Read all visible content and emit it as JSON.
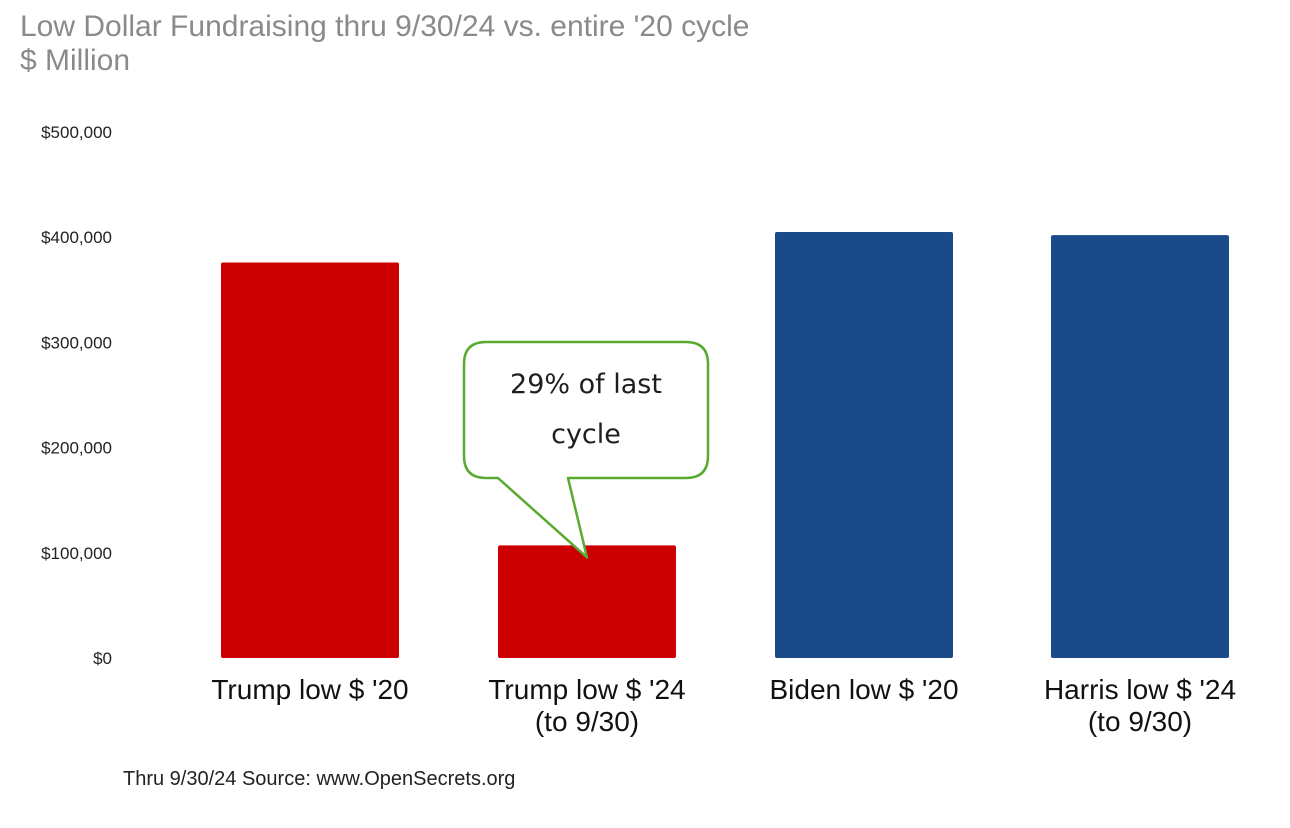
{
  "chart_data": {
    "type": "bar",
    "title": "Low Dollar Fundraising thru 9/30/24 vs. entire '20 cycle",
    "subtitle": "$ Million",
    "categories": [
      [
        "Trump low $ '20"
      ],
      [
        "Trump low $ '24",
        "(to 9/30)"
      ],
      [
        "Biden low $ '20"
      ],
      [
        "Harris low $ '24",
        "(to 9/30)"
      ]
    ],
    "values": [
      376000,
      107000,
      405000,
      402000
    ],
    "colors": [
      "#cc0000",
      "#cc0000",
      "#1a4a8a",
      "#1a4a8a"
    ],
    "ylim": [
      0,
      500000
    ],
    "yticks": [
      0,
      100000,
      200000,
      300000,
      400000,
      500000
    ],
    "ytick_labels": [
      "$0",
      "$100,000",
      "$200,000",
      "$300,000",
      "$400,000",
      "$500,000"
    ],
    "grid": false,
    "xlabel": "",
    "ylabel": "",
    "annotation": {
      "text": "29% of last cycle",
      "target_index": 1,
      "border_color": "#5aaa32"
    }
  },
  "source": "Thru 9/30/24 Source: www.OpenSecrets.org"
}
